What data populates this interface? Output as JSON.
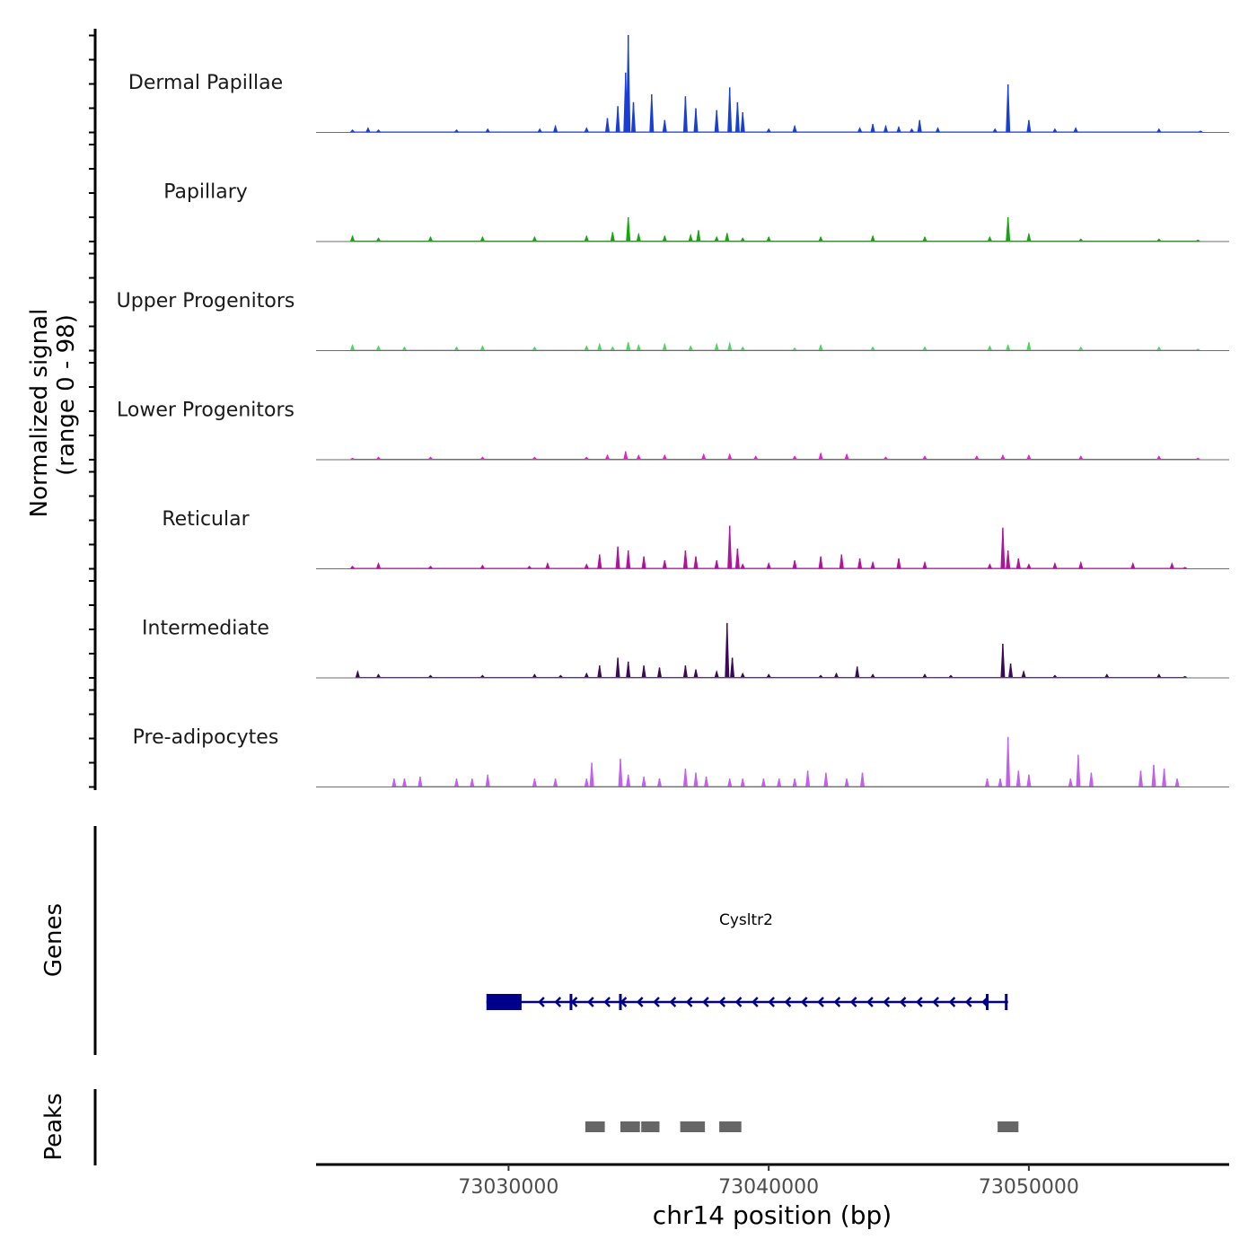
{
  "chart_data": {
    "type": "area",
    "chromosome": "chr14",
    "xlabel": "chr14 position (bp)",
    "ylabel_line1": "Normalized signal",
    "ylabel_line2": "(range 0 - 98)",
    "y_range": [
      0,
      98
    ],
    "xlim": [
      73022600,
      73057700
    ],
    "x_ticks": [
      73030000,
      73040000,
      73050000
    ],
    "tracks": [
      {
        "name": "Dermal Papillae",
        "color": "#1a3fd6",
        "x": [
          73024000,
          73024600,
          73025000,
          73028000,
          73029200,
          73031200,
          73031800,
          73033000,
          73033800,
          73034200,
          73034500,
          73034600,
          73034800,
          73035500,
          73036000,
          73036800,
          73037200,
          73038000,
          73038500,
          73038800,
          73039000,
          73040000,
          73041000,
          73043500,
          73044000,
          73044500,
          73045000,
          73045500,
          73045800,
          73046500,
          73048700,
          73049200,
          73050000,
          73051000,
          73051800,
          73055000,
          73056600
        ],
        "values": [
          2,
          4,
          2,
          2,
          3,
          3,
          6,
          4,
          14,
          26,
          60,
          98,
          30,
          38,
          12,
          36,
          24,
          22,
          45,
          30,
          20,
          3,
          6,
          4,
          8,
          6,
          5,
          3,
          12,
          4,
          3,
          48,
          12,
          3,
          4,
          3,
          1
        ]
      },
      {
        "name": "Papillary",
        "color": "#14a80a",
        "x": [
          73024000,
          73025000,
          73027000,
          73029000,
          73031000,
          73033000,
          73034000,
          73034600,
          73035000,
          73036000,
          73037000,
          73037300,
          73038000,
          73038400,
          73039000,
          73040000,
          73042000,
          73044000,
          73046000,
          73048500,
          73049200,
          73050000,
          73052000,
          73055000,
          73056500
        ],
        "values": [
          5,
          3,
          4,
          4,
          4,
          5,
          9,
          24,
          7,
          5,
          6,
          11,
          4,
          8,
          3,
          4,
          4,
          5,
          4,
          4,
          24,
          7,
          2,
          2,
          1
        ]
      },
      {
        "name": "Upper Progenitors",
        "color": "#4cd65a",
        "x": [
          73024000,
          73025000,
          73026000,
          73028000,
          73029000,
          73031000,
          73033000,
          73033500,
          73034000,
          73034600,
          73035000,
          73036000,
          73037000,
          73038000,
          73038500,
          73039000,
          73041000,
          73042000,
          73044000,
          73046000,
          73048500,
          73049200,
          73050000,
          73052000,
          73055000,
          73056500
        ],
        "values": [
          5,
          4,
          3,
          3,
          4,
          3,
          4,
          6,
          3,
          8,
          5,
          6,
          4,
          6,
          7,
          3,
          2,
          5,
          3,
          3,
          4,
          5,
          8,
          3,
          3,
          1
        ]
      },
      {
        "name": "Lower Progenitors",
        "color": "#e623d0",
        "x": [
          73024000,
          73025000,
          73027000,
          73029000,
          73031000,
          73033000,
          73033800,
          73034500,
          73035000,
          73036000,
          73037500,
          73038500,
          73039500,
          73041000,
          73042000,
          73043000,
          73044500,
          73046000,
          73048000,
          73049000,
          73050000,
          73052000,
          73055000,
          73056500
        ],
        "values": [
          1,
          2,
          2,
          2,
          2,
          2,
          4,
          8,
          4,
          4,
          5,
          5,
          3,
          3,
          6,
          5,
          2,
          3,
          3,
          4,
          4,
          3,
          3,
          1
        ]
      },
      {
        "name": "Reticular",
        "color": "#b0139d",
        "x": [
          73024000,
          73025000,
          73027000,
          73029000,
          73030800,
          73031500,
          73033000,
          73033500,
          73034200,
          73034600,
          73035200,
          73036000,
          73036800,
          73037200,
          73038000,
          73038500,
          73038800,
          73039000,
          73040000,
          73041000,
          73042000,
          73042800,
          73043500,
          73044000,
          73045000,
          73046000,
          73048500,
          73049000,
          73049200,
          73049600,
          73050000,
          73051000,
          73052000,
          73054000,
          73055500,
          73056000
        ],
        "values": [
          2,
          5,
          2,
          3,
          2,
          5,
          4,
          14,
          22,
          18,
          12,
          8,
          18,
          12,
          8,
          43,
          20,
          4,
          5,
          8,
          12,
          14,
          10,
          6,
          10,
          6,
          4,
          41,
          18,
          10,
          4,
          5,
          6,
          5,
          5,
          1
        ]
      },
      {
        "name": "Intermediate",
        "color": "#3a0a56",
        "x": [
          73024200,
          73025000,
          73027000,
          73029000,
          73031000,
          73032000,
          73033000,
          73033500,
          73034200,
          73034600,
          73035200,
          73035800,
          73036800,
          73037200,
          73038000,
          73038400,
          73038600,
          73039000,
          73040000,
          73042000,
          73042600,
          73043400,
          73044000,
          73046000,
          73047000,
          73049000,
          73049300,
          73049800,
          73051000,
          73053000,
          73055000,
          73056000
        ],
        "values": [
          6,
          3,
          2,
          2,
          3,
          2,
          4,
          12,
          20,
          16,
          12,
          10,
          12,
          8,
          6,
          55,
          20,
          4,
          3,
          2,
          4,
          11,
          3,
          3,
          2,
          34,
          14,
          6,
          2,
          3,
          3,
          1
        ]
      },
      {
        "name": "Pre-adipocytes",
        "color": "#c25ff0",
        "x": [
          73025600,
          73026000,
          73026600,
          73028000,
          73028600,
          73029200,
          73031000,
          73031800,
          73033000,
          73033200,
          73034300,
          73034600,
          73035200,
          73035800,
          73036800,
          73037200,
          73037600,
          73038500,
          73039000,
          73039800,
          73040400,
          73041000,
          73041500,
          73042200,
          73043000,
          73043600,
          73048400,
          73048900,
          73049200,
          73049600,
          73050000,
          73051600,
          73051900,
          73052400,
          73054300,
          73054800,
          73055200,
          73055700
        ],
        "values": [
          8,
          8,
          10,
          8,
          8,
          12,
          8,
          8,
          8,
          24,
          28,
          12,
          10,
          8,
          18,
          14,
          10,
          8,
          8,
          8,
          8,
          8,
          16,
          14,
          8,
          14,
          8,
          8,
          50,
          16,
          12,
          8,
          32,
          14,
          16,
          22,
          18,
          8
        ]
      }
    ],
    "gene": {
      "name": "Cysltr2",
      "start": 73029150,
      "end": 73049200,
      "strand": "-",
      "utr_end": 73030500,
      "exon_markers": [
        73032400,
        73034300,
        73048400
      ]
    },
    "peaks_track_label": "Peaks",
    "genes_track_label": "Genes",
    "peaks": [
      [
        73032950,
        73033700
      ],
      [
        73034300,
        73035050
      ],
      [
        73035100,
        73035800
      ],
      [
        73036600,
        73037550
      ],
      [
        73038100,
        73038950
      ],
      [
        73048800,
        73049600
      ]
    ]
  }
}
